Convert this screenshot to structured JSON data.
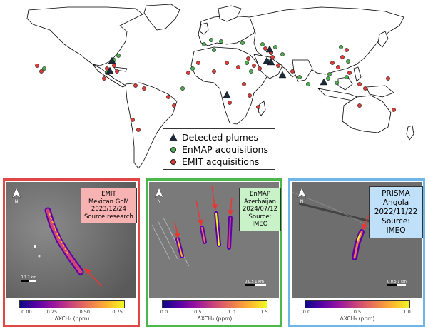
{
  "legend": {
    "items": [
      {
        "label": "Detected plumes",
        "symbol": "triangle",
        "color": "#1e2a3a"
      },
      {
        "label": "EnMAP acquisitions",
        "symbol": "circle",
        "color": "#4caf50"
      },
      {
        "label": "EMIT acquisitions",
        "symbol": "circle",
        "color": "#e53935"
      }
    ]
  },
  "panels": [
    {
      "border_color": "#e04848",
      "box_color": "#f7b2b2",
      "sensor": "EMIT",
      "site": "Mexican GoM",
      "date": "2023/12/24",
      "source": "Source:research",
      "north": "N",
      "scale_text": "0  1   2 km",
      "colorbar": {
        "ticks": [
          "0.00",
          "0.25",
          "0.50",
          "0.75"
        ],
        "max": 0.8,
        "label": "ΔXCH₄ (ppm)"
      }
    },
    {
      "border_color": "#4cb84c",
      "box_color": "#c9f2c9",
      "sensor": "EnMAP",
      "site": "Azerbaijan",
      "date": "2024/07/12",
      "source": "Source: IMEO",
      "north": "N",
      "scale_text": "0 0.5  1 km",
      "colorbar": {
        "ticks": [
          "0.0",
          "0.5",
          "1.0",
          "1.5"
        ],
        "max": 1.5,
        "label": "ΔXCH₄ (ppm)"
      }
    },
    {
      "border_color": "#6fb6e8",
      "box_color": "#bfe0f8",
      "sensor": "PRISMA",
      "site": "Angola",
      "date": "2022/11/22",
      "source": "Source: IMEO",
      "north": "N",
      "scale_text": "0  0.5  1 km",
      "colorbar": {
        "ticks": [
          "0.0",
          "0.5",
          "1.0"
        ],
        "max": 1.0,
        "label": "ΔXCH₄ (ppm)"
      }
    }
  ]
}
